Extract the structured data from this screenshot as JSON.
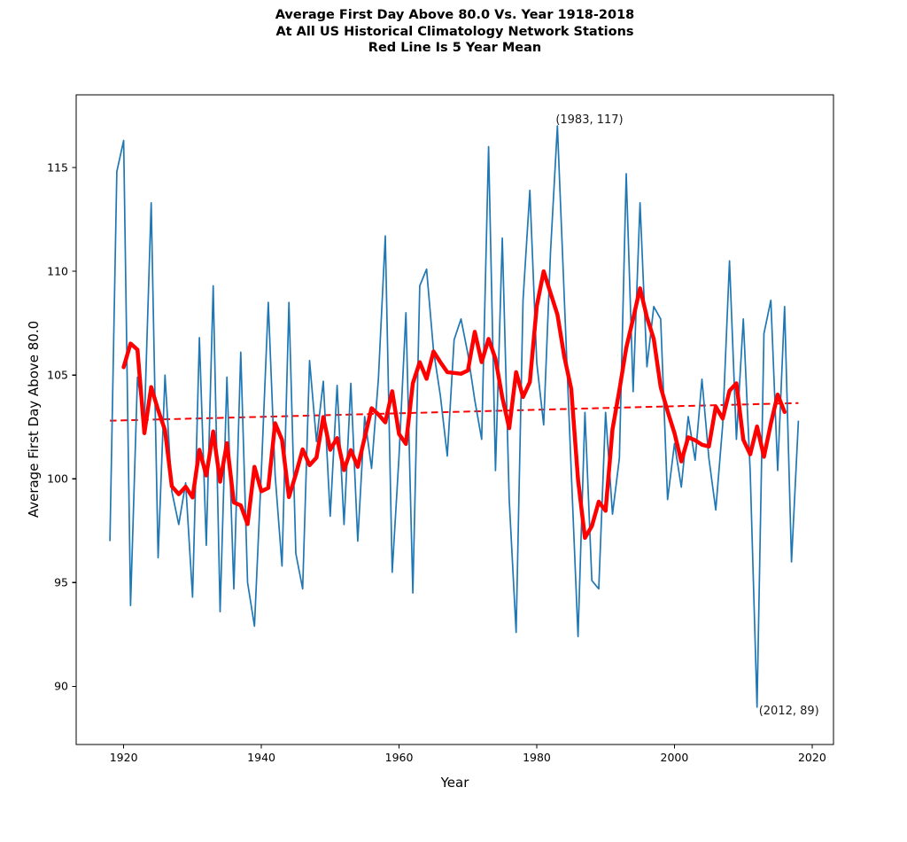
{
  "title": {
    "line1": "Average First Day Above 80.0 Vs. Year 1918-2018",
    "line2": "At All US Historical Climatology Network Stations",
    "line3": "Red Line Is 5 Year Mean"
  },
  "colors": {
    "annual_line": "#1f77b4",
    "mean_line": "#ff0000",
    "trend_line": "#ff0000",
    "spine": "#000000",
    "text": "#000000"
  },
  "chart_data": {
    "type": "line",
    "title": "Average First Day Above 80.0 Vs. Year 1918-2018 / At All US Historical Climatology Network Stations / Red Line Is 5 Year Mean",
    "xlabel": "Year",
    "ylabel": "Average First Day Above 80.0",
    "xlim": [
      1913.1,
      2023.1
    ],
    "ylim": [
      87.2,
      118.5
    ],
    "x_ticks": [
      1920,
      1940,
      1960,
      1980,
      2000,
      2020
    ],
    "y_ticks": [
      90,
      95,
      100,
      105,
      110,
      115
    ],
    "grid": false,
    "legend": "none",
    "x": [
      1918,
      1919,
      1920,
      1921,
      1922,
      1923,
      1924,
      1925,
      1926,
      1927,
      1928,
      1929,
      1930,
      1931,
      1932,
      1933,
      1934,
      1935,
      1936,
      1937,
      1938,
      1939,
      1940,
      1941,
      1942,
      1943,
      1944,
      1945,
      1946,
      1947,
      1948,
      1949,
      1950,
      1951,
      1952,
      1953,
      1954,
      1955,
      1956,
      1957,
      1958,
      1959,
      1960,
      1961,
      1962,
      1963,
      1964,
      1965,
      1966,
      1967,
      1968,
      1969,
      1970,
      1971,
      1972,
      1973,
      1974,
      1975,
      1976,
      1977,
      1978,
      1979,
      1980,
      1981,
      1982,
      1983,
      1984,
      1985,
      1986,
      1987,
      1988,
      1989,
      1990,
      1991,
      1992,
      1993,
      1994,
      1995,
      1996,
      1997,
      1998,
      1999,
      2000,
      2001,
      2002,
      2003,
      2004,
      2005,
      2006,
      2007,
      2008,
      2009,
      2010,
      2011,
      2012,
      2013,
      2014,
      2015,
      2016,
      2017,
      2018
    ],
    "series": [
      {
        "name": "annual-first-day-above-80",
        "color": "#1f77b4",
        "line_width": 1.7,
        "values": [
          97.0,
          114.8,
          116.3,
          93.9,
          104.9,
          102.7,
          113.3,
          96.2,
          105.0,
          99.4,
          97.8,
          99.8,
          94.3,
          106.8,
          96.8,
          109.3,
          93.6,
          104.9,
          94.7,
          106.1,
          95.0,
          92.9,
          100.4,
          108.5,
          100.2,
          95.8,
          108.5,
          96.4,
          94.7,
          105.7,
          101.8,
          104.7,
          98.2,
          104.5,
          97.8,
          104.6,
          97.0,
          103.0,
          100.5,
          104.8,
          111.7,
          95.5,
          101.1,
          108.0,
          94.5,
          109.3,
          110.1,
          106.2,
          104.0,
          101.1,
          106.7,
          107.7,
          106.0,
          103.8,
          101.9,
          116.0,
          100.4,
          111.6,
          99.0,
          92.6,
          108.6,
          113.9,
          105.6,
          102.6,
          110.9,
          117.0,
          108.7,
          100.4,
          92.4,
          103.2,
          95.1,
          94.7,
          103.2,
          98.3,
          101.0,
          114.7,
          104.2,
          113.3,
          105.4,
          108.3,
          107.7,
          99.0,
          101.7,
          99.6,
          103.0,
          100.9,
          104.8,
          101.0,
          98.5,
          102.6,
          110.5,
          101.9,
          107.7,
          100.3,
          89.0,
          107.0,
          108.6,
          100.4,
          108.3,
          96.0,
          102.8
        ]
      },
      {
        "name": "5-year-mean",
        "color": "#ff0000",
        "line_width": 4.5,
        "derived": "centered 5-year rolling mean of annual series (plotted 1920-2016)"
      },
      {
        "name": "trend",
        "color": "#ff0000",
        "line_width": 2,
        "style": "dashed",
        "x": [
          1918,
          2018
        ],
        "values": [
          102.8,
          103.65
        ]
      }
    ],
    "annotations": [
      {
        "x": 1983,
        "y": 117,
        "label": "(1983, 117)"
      },
      {
        "x": 2012,
        "y": 89,
        "label": "(2012, 89)"
      }
    ]
  }
}
